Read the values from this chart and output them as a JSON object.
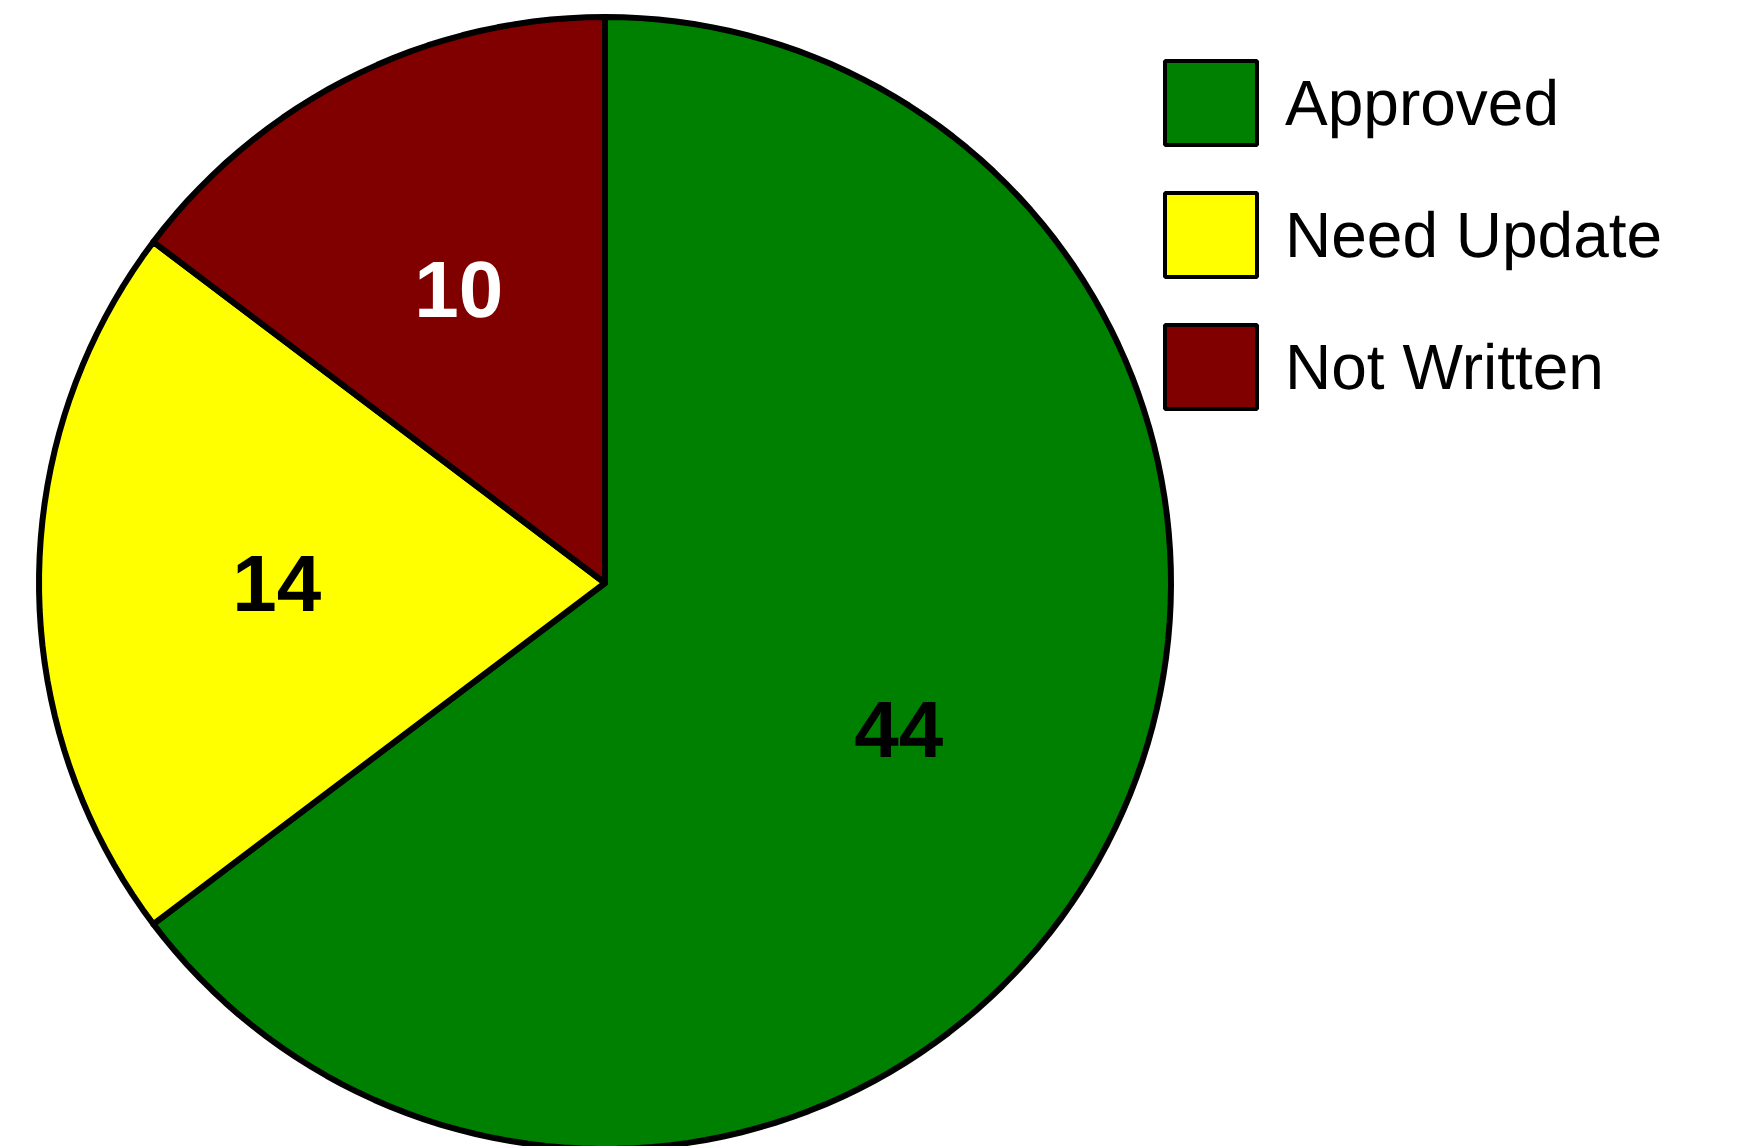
{
  "chart_data": {
    "type": "pie",
    "categories": [
      "Approved",
      "Need Update",
      "Not Written"
    ],
    "values": [
      44,
      14,
      10
    ],
    "colors": [
      "#008000",
      "#ffff00",
      "#800000"
    ],
    "data_labels": true,
    "legend": "top right"
  }
}
